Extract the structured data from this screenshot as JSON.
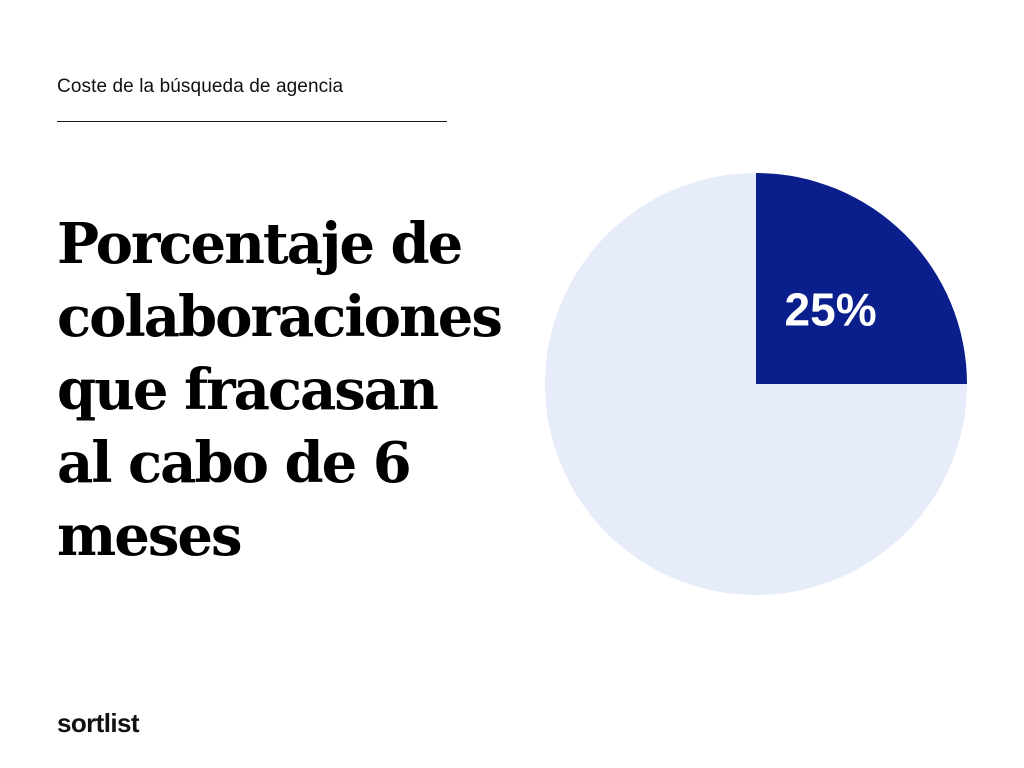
{
  "header": {
    "category": "Coste de la búsqueda de agencia"
  },
  "headline": {
    "text": "Porcentaje de colaboraciones que fracasan al cabo de 6 meses"
  },
  "brand": {
    "name": "sortlist"
  },
  "colors": {
    "highlight": "#0a1e8c",
    "remainder": "#e6ecf9",
    "label": "#ffffff",
    "text": "#000000"
  },
  "chart_data": {
    "type": "pie",
    "title": "",
    "values": [
      25,
      75
    ],
    "labels": [
      "25%",
      ""
    ],
    "start_angle": "12 o'clock",
    "direction": "clockwise"
  }
}
